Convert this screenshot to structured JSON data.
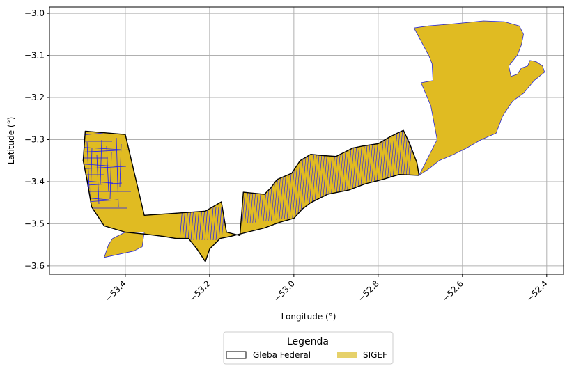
{
  "chart_data": {
    "type": "map",
    "xlabel": "Longitude (°)",
    "ylabel": "Latitude (°)",
    "xlim": [
      -53.58,
      -52.36
    ],
    "ylim": [
      -3.62,
      -2.985
    ],
    "x_ticks": [
      -53.4,
      -53.2,
      -53.0,
      -52.8,
      -52.6,
      -52.4
    ],
    "x_tick_labels": [
      "−53.4",
      "−53.2",
      "−53.0",
      "−52.8",
      "−52.6",
      "−52.4"
    ],
    "y_ticks": [
      -3.0,
      -3.1,
      -3.2,
      -3.3,
      -3.4,
      -3.5,
      -3.6
    ],
    "y_tick_labels": [
      "−3.0",
      "−3.1",
      "−3.2",
      "−3.3",
      "−3.4",
      "−3.5",
      "−3.6"
    ],
    "grid": true,
    "colors": {
      "sigef_fill": "#e0bb22",
      "sigef_edge": "#2a2ad0",
      "parcel_line": "#1a1aff",
      "gleba_edge": "#000000",
      "grid": "#b0b0b0"
    },
    "legend": {
      "title": "Legenda",
      "placement": "bottom-center",
      "entries": [
        {
          "label": "Gleba Federal",
          "style": "outline",
          "color": "#000000"
        },
        {
          "label": "SIGEF",
          "style": "fill",
          "color": "#e6d16a"
        }
      ]
    },
    "layers": [
      {
        "name": "Gleba Federal",
        "polygon": [
          [
            -53.495,
            -3.28
          ],
          [
            -53.4,
            -3.288
          ],
          [
            -53.355,
            -3.48
          ],
          [
            -53.28,
            -3.475
          ],
          [
            -53.21,
            -3.47
          ],
          [
            -53.172,
            -3.448
          ],
          [
            -53.16,
            -3.52
          ],
          [
            -53.128,
            -3.528
          ],
          [
            -53.12,
            -3.425
          ],
          [
            -53.07,
            -3.43
          ],
          [
            -53.055,
            -3.415
          ],
          [
            -53.04,
            -3.395
          ],
          [
            -53.005,
            -3.38
          ],
          [
            -52.985,
            -3.35
          ],
          [
            -52.96,
            -3.335
          ],
          [
            -52.93,
            -3.338
          ],
          [
            -52.9,
            -3.34
          ],
          [
            -52.86,
            -3.32
          ],
          [
            -52.835,
            -3.315
          ],
          [
            -52.8,
            -3.31
          ],
          [
            -52.775,
            -3.295
          ],
          [
            -52.755,
            -3.285
          ],
          [
            -52.74,
            -3.278
          ],
          [
            -52.725,
            -3.31
          ],
          [
            -52.708,
            -3.355
          ],
          [
            -52.703,
            -3.385
          ],
          [
            -52.75,
            -3.383
          ],
          [
            -52.79,
            -3.395
          ],
          [
            -52.83,
            -3.405
          ],
          [
            -52.87,
            -3.42
          ],
          [
            -52.92,
            -3.43
          ],
          [
            -52.96,
            -3.45
          ],
          [
            -52.98,
            -3.465
          ],
          [
            -53.0,
            -3.487
          ],
          [
            -53.035,
            -3.497
          ],
          [
            -53.07,
            -3.51
          ],
          [
            -53.11,
            -3.52
          ],
          [
            -53.15,
            -3.53
          ],
          [
            -53.175,
            -3.535
          ],
          [
            -53.2,
            -3.56
          ],
          [
            -53.21,
            -3.59
          ],
          [
            -53.23,
            -3.56
          ],
          [
            -53.25,
            -3.535
          ],
          [
            -53.28,
            -3.535
          ],
          [
            -53.31,
            -3.53
          ],
          [
            -53.35,
            -3.525
          ],
          [
            -53.4,
            -3.52
          ],
          [
            -53.45,
            -3.505
          ],
          [
            -53.48,
            -3.46
          ],
          [
            -53.49,
            -3.4
          ],
          [
            -53.5,
            -3.35
          ],
          [
            -53.495,
            -3.28
          ]
        ]
      },
      {
        "name": "SIGEF",
        "polygon": [
          [
            -53.495,
            -3.28
          ],
          [
            -53.4,
            -3.288
          ],
          [
            -53.355,
            -3.48
          ],
          [
            -53.28,
            -3.475
          ],
          [
            -53.21,
            -3.47
          ],
          [
            -53.172,
            -3.448
          ],
          [
            -53.16,
            -3.52
          ],
          [
            -53.128,
            -3.528
          ],
          [
            -53.12,
            -3.425
          ],
          [
            -53.07,
            -3.43
          ],
          [
            -53.055,
            -3.415
          ],
          [
            -53.04,
            -3.395
          ],
          [
            -53.005,
            -3.38
          ],
          [
            -52.985,
            -3.35
          ],
          [
            -52.96,
            -3.335
          ],
          [
            -52.93,
            -3.338
          ],
          [
            -52.9,
            -3.34
          ],
          [
            -52.86,
            -3.32
          ],
          [
            -52.835,
            -3.315
          ],
          [
            -52.8,
            -3.31
          ],
          [
            -52.775,
            -3.295
          ],
          [
            -52.74,
            -3.278
          ],
          [
            -52.725,
            -3.31
          ],
          [
            -52.708,
            -3.355
          ],
          [
            -52.703,
            -3.385
          ],
          [
            -52.68,
            -3.37
          ],
          [
            -52.655,
            -3.35
          ],
          [
            -52.62,
            -3.335
          ],
          [
            -52.59,
            -3.32
          ],
          [
            -52.555,
            -3.3
          ],
          [
            -52.52,
            -3.285
          ],
          [
            -52.505,
            -3.245
          ],
          [
            -52.49,
            -3.222
          ],
          [
            -52.48,
            -3.208
          ],
          [
            -52.455,
            -3.19
          ],
          [
            -52.43,
            -3.16
          ],
          [
            -52.405,
            -3.14
          ],
          [
            -52.41,
            -3.125
          ],
          [
            -52.425,
            -3.115
          ],
          [
            -52.44,
            -3.112
          ],
          [
            -52.445,
            -3.125
          ],
          [
            -52.46,
            -3.13
          ],
          [
            -52.47,
            -3.145
          ],
          [
            -52.485,
            -3.15
          ],
          [
            -52.49,
            -3.125
          ],
          [
            -52.47,
            -3.1
          ],
          [
            -52.46,
            -3.075
          ],
          [
            -52.455,
            -3.05
          ],
          [
            -52.465,
            -3.03
          ],
          [
            -52.5,
            -3.02
          ],
          [
            -52.55,
            -3.018
          ],
          [
            -52.62,
            -3.025
          ],
          [
            -52.68,
            -3.03
          ],
          [
            -52.715,
            -3.035
          ],
          [
            -52.68,
            -3.1
          ],
          [
            -52.672,
            -3.12
          ],
          [
            -52.67,
            -3.16
          ],
          [
            -52.698,
            -3.165
          ],
          [
            -52.675,
            -3.22
          ],
          [
            -52.66,
            -3.3
          ],
          [
            -52.703,
            -3.385
          ],
          [
            -52.75,
            -3.383
          ],
          [
            -52.79,
            -3.395
          ],
          [
            -52.83,
            -3.405
          ],
          [
            -52.87,
            -3.42
          ],
          [
            -52.92,
            -3.43
          ],
          [
            -52.96,
            -3.45
          ],
          [
            -52.98,
            -3.465
          ],
          [
            -53.0,
            -3.487
          ],
          [
            -53.035,
            -3.497
          ],
          [
            -53.07,
            -3.51
          ],
          [
            -53.11,
            -3.52
          ],
          [
            -53.15,
            -3.53
          ],
          [
            -53.175,
            -3.535
          ],
          [
            -53.2,
            -3.56
          ],
          [
            -53.21,
            -3.59
          ],
          [
            -53.23,
            -3.56
          ],
          [
            -53.25,
            -3.535
          ],
          [
            -53.28,
            -3.535
          ],
          [
            -53.31,
            -3.53
          ],
          [
            -53.35,
            -3.525
          ],
          [
            -53.4,
            -3.52
          ],
          [
            -53.43,
            -3.535
          ],
          [
            -53.44,
            -3.55
          ],
          [
            -53.45,
            -3.58
          ],
          [
            -53.38,
            -3.565
          ],
          [
            -53.36,
            -3.555
          ],
          [
            -53.355,
            -3.52
          ],
          [
            -53.4,
            -3.52
          ],
          [
            -53.45,
            -3.505
          ],
          [
            -53.48,
            -3.46
          ],
          [
            -53.5,
            -3.35
          ],
          [
            -53.495,
            -3.28
          ]
        ]
      }
    ]
  }
}
